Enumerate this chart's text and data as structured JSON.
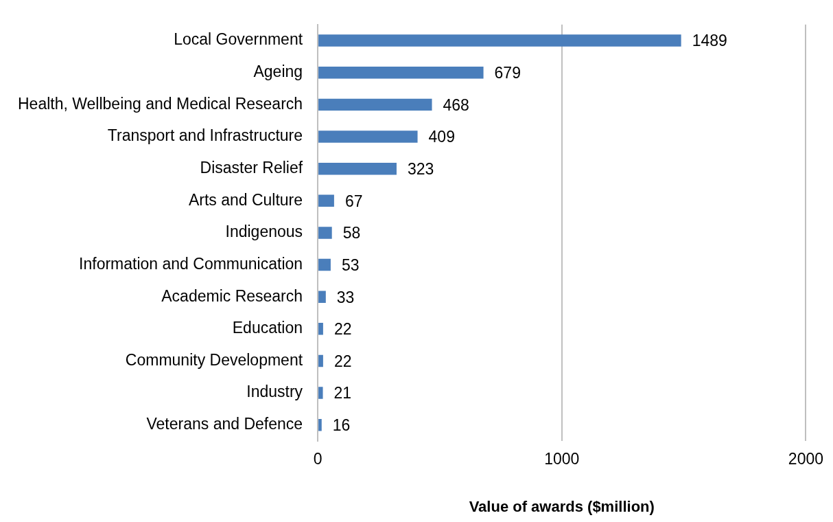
{
  "chart_data": {
    "type": "bar",
    "orientation": "horizontal",
    "xlabel": "Value of awards ($million)",
    "categories": [
      "Local Government",
      "Ageing",
      "Health, Wellbeing and Medical Research",
      "Transport and Infrastructure",
      "Disaster Relief",
      "Arts and Culture",
      "Indigenous",
      "Information and Communication",
      "Academic Research",
      "Education",
      "Community Development",
      "Industry",
      "Veterans and Defence"
    ],
    "values": [
      1489,
      679,
      468,
      409,
      323,
      67,
      58,
      53,
      33,
      22,
      22,
      21,
      16
    ],
    "color": "#4a7ebb",
    "xlim": [
      0,
      2000
    ],
    "xticks": [
      0,
      1000,
      2000
    ],
    "grid": "x",
    "data_labels": true,
    "legend": false
  }
}
